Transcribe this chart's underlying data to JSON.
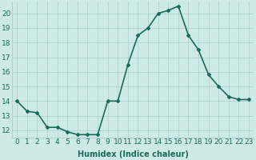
{
  "x": [
    0,
    1,
    2,
    3,
    4,
    5,
    6,
    7,
    8,
    9,
    10,
    11,
    12,
    13,
    14,
    15,
    16,
    17,
    18,
    19,
    20,
    21,
    22,
    23
  ],
  "y": [
    14,
    13.3,
    13.2,
    12.2,
    12.2,
    11.9,
    11.7,
    11.7,
    11.7,
    14,
    14,
    16.5,
    18.5,
    19,
    20,
    20.2,
    20.5,
    18.5,
    17.5,
    15.8,
    15,
    14.3,
    14.1,
    14.1
  ],
  "line_color": "#1a6b5a",
  "marker": "D",
  "marker_size": 2,
  "bg_color": "#ceeae7",
  "grid_color": "#aed4d0",
  "xlabel": "Humidex (Indice chaleur)",
  "ylabel": "",
  "title": "",
  "xlim": [
    -0.5,
    23.5
  ],
  "ylim": [
    11.5,
    20.8
  ],
  "yticks": [
    12,
    13,
    14,
    15,
    16,
    17,
    18,
    19,
    20
  ],
  "xticks": [
    0,
    1,
    2,
    3,
    4,
    5,
    6,
    7,
    8,
    9,
    10,
    11,
    12,
    13,
    14,
    15,
    16,
    17,
    18,
    19,
    20,
    21,
    22,
    23
  ],
  "xlabel_fontsize": 7,
  "tick_fontsize": 6.5,
  "line_width": 1.2
}
